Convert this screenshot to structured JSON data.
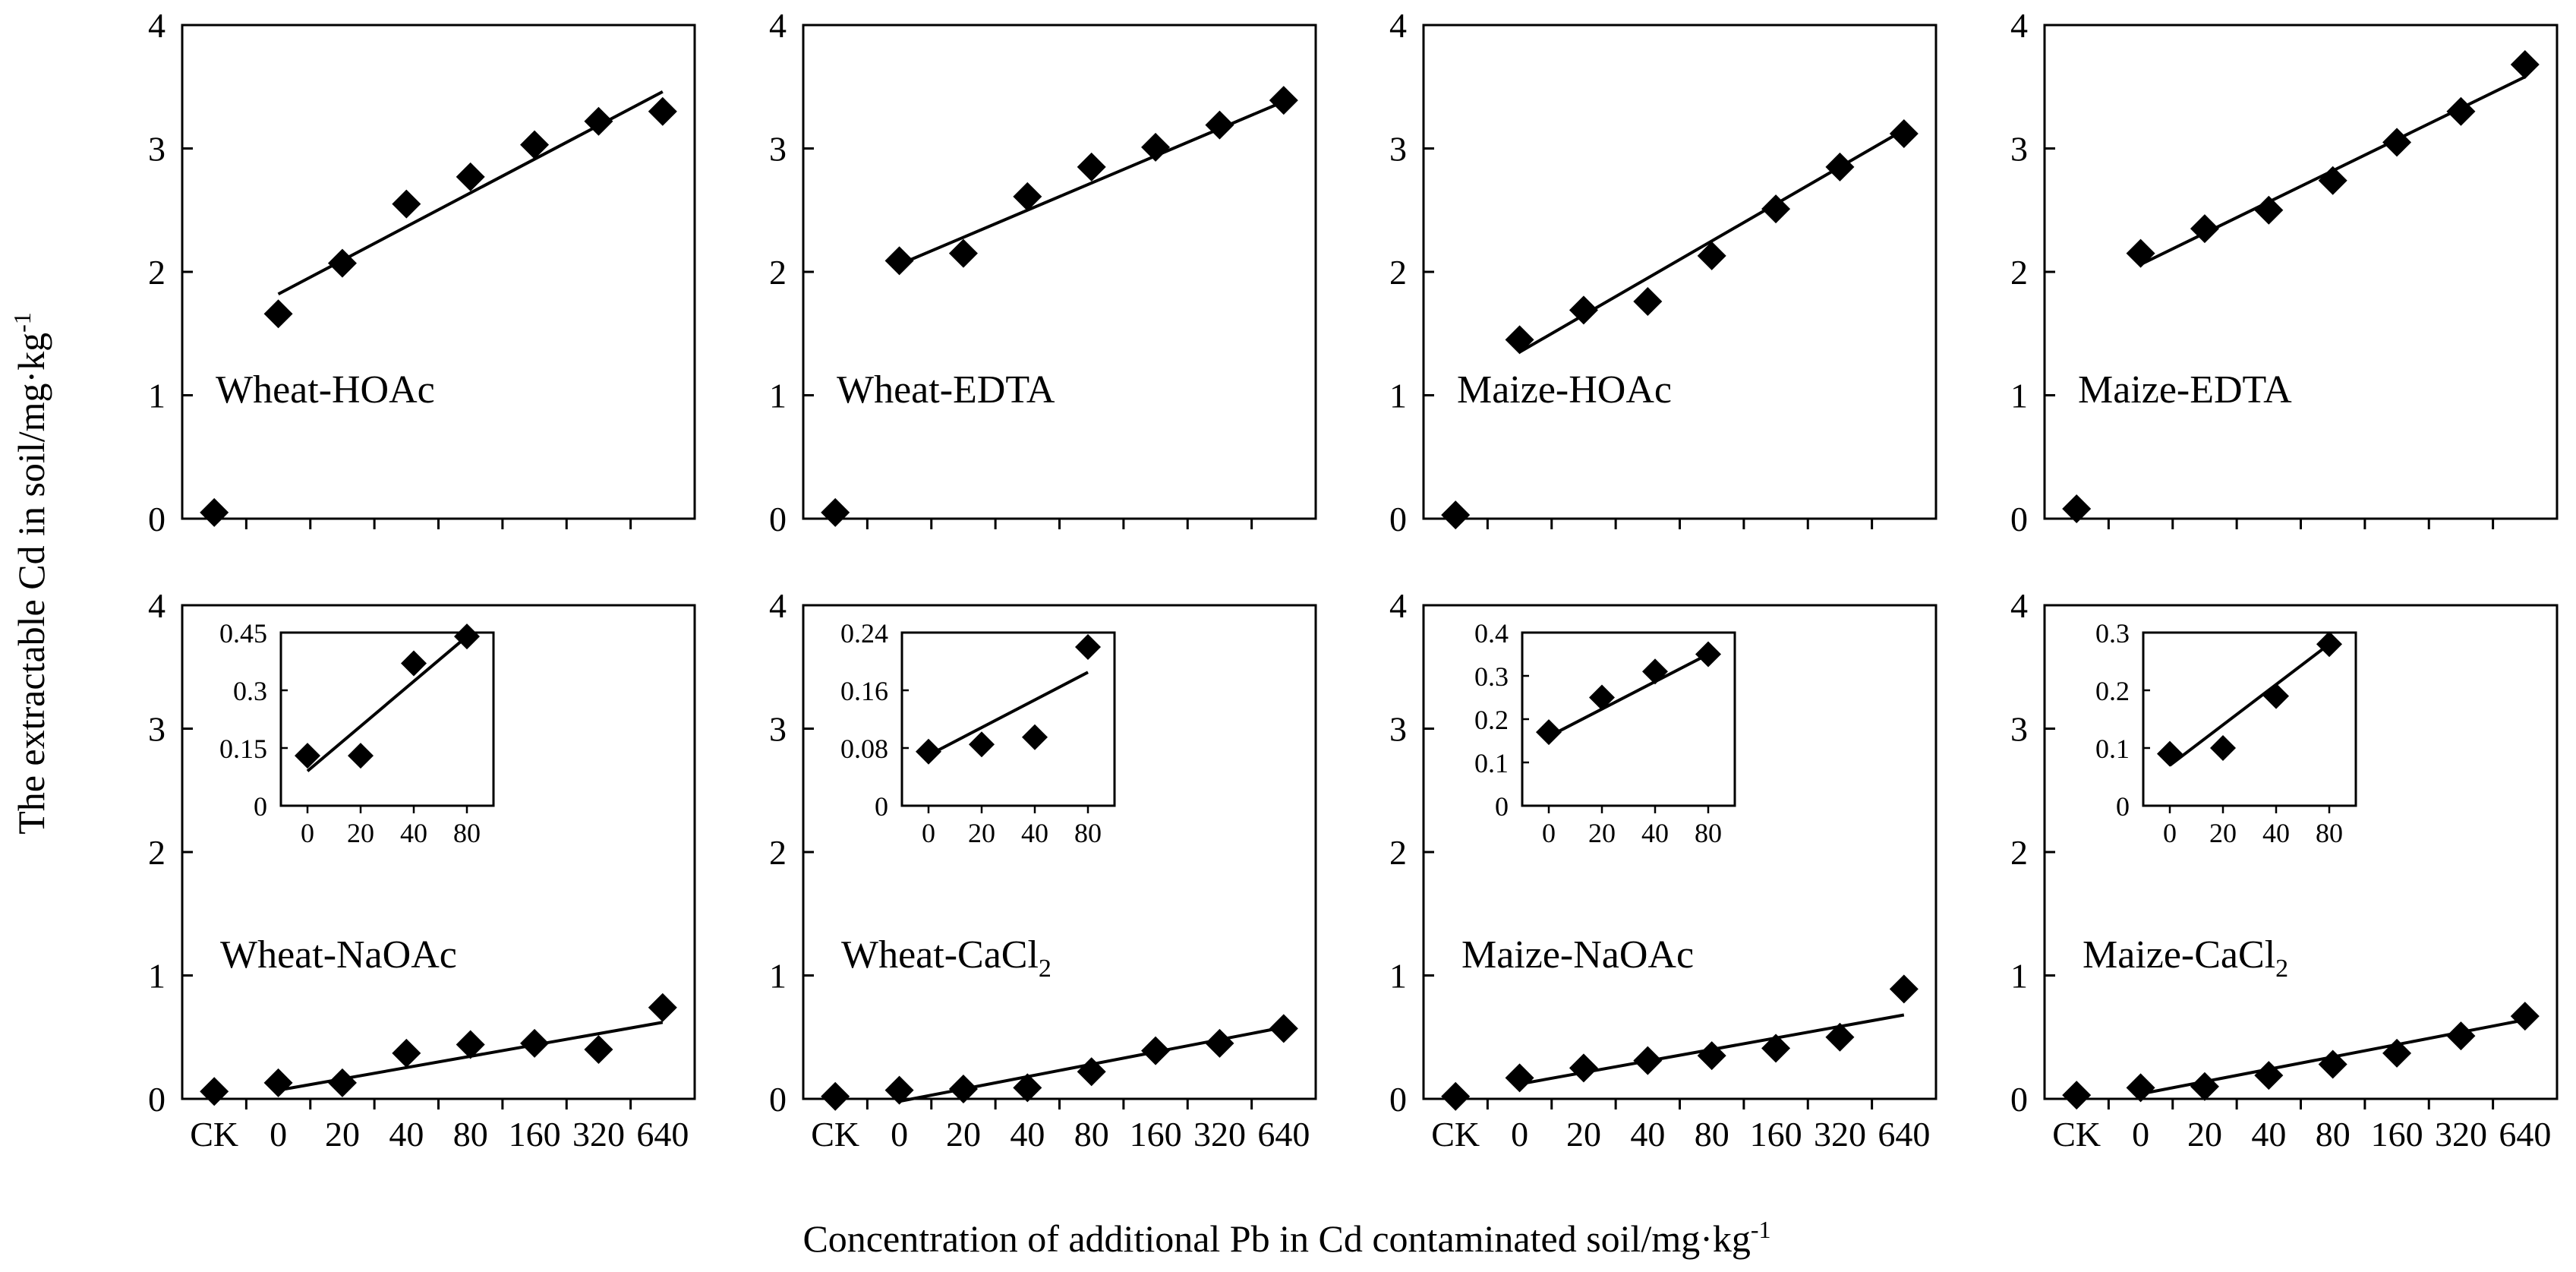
{
  "figure": {
    "ylabel_main": "The extractable Cd in soil/mg·kg",
    "ylabel_sup": "-1",
    "xlabel_main": "Concentration of additional Pb in Cd contaminated soil/mg·kg",
    "xlabel_sup": "-1"
  },
  "chart_data": [
    {
      "type": "scatter",
      "title": "Wheat-HOAc",
      "title_sub": "",
      "categories": [
        "CK",
        "0",
        "20",
        "40",
        "80",
        "160",
        "320",
        "640"
      ],
      "values": [
        0.05,
        1.66,
        2.07,
        2.55,
        2.77,
        3.03,
        3.22,
        3.3
      ],
      "ylim": [
        0,
        4
      ],
      "yticks": [
        "0",
        "1",
        "2",
        "3",
        "4"
      ],
      "show_xticklabels": false,
      "fit": {
        "from": 1,
        "to": 7,
        "y0": 1.82,
        "y1": 3.46
      }
    },
    {
      "type": "scatter",
      "title": "Wheat-EDTA",
      "title_sub": "",
      "categories": [
        "CK",
        "0",
        "20",
        "40",
        "80",
        "160",
        "320",
        "640"
      ],
      "values": [
        0.05,
        2.09,
        2.15,
        2.61,
        2.85,
        3.01,
        3.19,
        3.39
      ],
      "ylim": [
        0,
        4
      ],
      "yticks": [
        "0",
        "1",
        "2",
        "3",
        "4"
      ],
      "show_xticklabels": false,
      "fit": {
        "from": 1,
        "to": 7,
        "y0": 2.06,
        "y1": 3.38
      }
    },
    {
      "type": "scatter",
      "title": "Maize-HOAc",
      "title_sub": "",
      "categories": [
        "CK",
        "0",
        "20",
        "40",
        "80",
        "160",
        "320",
        "640"
      ],
      "values": [
        0.03,
        1.45,
        1.69,
        1.76,
        2.13,
        2.51,
        2.85,
        3.12
      ],
      "ylim": [
        0,
        4
      ],
      "yticks": [
        "0",
        "1",
        "2",
        "3",
        "4"
      ],
      "show_xticklabels": false,
      "fit": {
        "from": 1,
        "to": 7,
        "y0": 1.35,
        "y1": 3.15
      }
    },
    {
      "type": "scatter",
      "title": "Maize-EDTA",
      "title_sub": "",
      "categories": [
        "CK",
        "0",
        "20",
        "40",
        "80",
        "160",
        "320",
        "640"
      ],
      "values": [
        0.08,
        2.15,
        2.35,
        2.5,
        2.74,
        3.05,
        3.3,
        3.68
      ],
      "ylim": [
        0,
        4
      ],
      "yticks": [
        "0",
        "1",
        "2",
        "3",
        "4"
      ],
      "show_xticklabels": false,
      "fit": {
        "from": 1,
        "to": 7,
        "y0": 2.06,
        "y1": 3.58
      }
    },
    {
      "type": "scatter",
      "title": "Wheat-NaOAc",
      "title_sub": "",
      "categories": [
        "CK",
        "0",
        "20",
        "40",
        "80",
        "160",
        "320",
        "640"
      ],
      "values": [
        0.06,
        0.13,
        0.13,
        0.37,
        0.44,
        0.45,
        0.4,
        0.74
      ],
      "ylim": [
        0,
        4
      ],
      "yticks": [
        "0",
        "1",
        "2",
        "3",
        "4"
      ],
      "show_xticklabels": true,
      "fit": {
        "from": 1,
        "to": 7,
        "y0": 0.07,
        "y1": 0.62
      },
      "inset": {
        "categories": [
          "0",
          "20",
          "40",
          "80"
        ],
        "values": [
          0.13,
          0.13,
          0.37,
          0.44
        ],
        "ylim": [
          0,
          0.45
        ],
        "yticks": [
          "0",
          "0.15",
          "0.3",
          "0.45"
        ],
        "fit": {
          "y0": 0.09,
          "y1": 0.44
        }
      }
    },
    {
      "type": "scatter",
      "title": "Wheat-CaCl",
      "title_sub": "2",
      "categories": [
        "CK",
        "0",
        "20",
        "40",
        "80",
        "160",
        "320",
        "640"
      ],
      "values": [
        0.02,
        0.07,
        0.08,
        0.09,
        0.22,
        0.39,
        0.45,
        0.57
      ],
      "ylim": [
        0,
        4
      ],
      "yticks": [
        "0",
        "1",
        "2",
        "3",
        "4"
      ],
      "show_xticklabels": true,
      "fit": {
        "from": 1,
        "to": 7,
        "y0": -0.02,
        "y1": 0.58
      },
      "inset": {
        "categories": [
          "0",
          "20",
          "40",
          "80"
        ],
        "values": [
          0.075,
          0.085,
          0.095,
          0.22
        ],
        "ylim": [
          0,
          0.24
        ],
        "yticks": [
          "0",
          "0.08",
          "0.16",
          "0.24"
        ],
        "fit": {
          "y0": 0.07,
          "y1": 0.185
        }
      }
    },
    {
      "type": "scatter",
      "title": "Maize-NaOAc",
      "title_sub": "",
      "categories": [
        "CK",
        "0",
        "20",
        "40",
        "80",
        "160",
        "320",
        "640"
      ],
      "values": [
        0.02,
        0.17,
        0.25,
        0.31,
        0.35,
        0.41,
        0.5,
        0.89
      ],
      "ylim": [
        0,
        4
      ],
      "yticks": [
        "0",
        "1",
        "2",
        "3",
        "4"
      ],
      "show_xticklabels": true,
      "fit": {
        "from": 1,
        "to": 7,
        "y0": 0.12,
        "y1": 0.68
      },
      "inset": {
        "categories": [
          "0",
          "20",
          "40",
          "80"
        ],
        "values": [
          0.17,
          0.25,
          0.31,
          0.35
        ],
        "ylim": [
          0,
          0.4
        ],
        "yticks": [
          "0",
          "0.1",
          "0.2",
          "0.3",
          "0.4"
        ],
        "fit": {
          "y0": 0.16,
          "y1": 0.35
        }
      }
    },
    {
      "type": "scatter",
      "title": "Maize-CaCl",
      "title_sub": "2",
      "categories": [
        "CK",
        "0",
        "20",
        "40",
        "80",
        "160",
        "320",
        "640"
      ],
      "values": [
        0.03,
        0.09,
        0.1,
        0.19,
        0.28,
        0.37,
        0.51,
        0.67
      ],
      "ylim": [
        0,
        4
      ],
      "yticks": [
        "0",
        "1",
        "2",
        "3",
        "4"
      ],
      "show_xticklabels": true,
      "fit": {
        "from": 1,
        "to": 7,
        "y0": 0.04,
        "y1": 0.64
      },
      "inset": {
        "categories": [
          "0",
          "20",
          "40",
          "80"
        ],
        "values": [
          0.09,
          0.1,
          0.19,
          0.28
        ],
        "ylim": [
          0,
          0.3
        ],
        "yticks": [
          "0",
          "0.1",
          "0.2",
          "0.3"
        ],
        "fit": {
          "y0": 0.07,
          "y1": 0.28
        }
      }
    }
  ]
}
